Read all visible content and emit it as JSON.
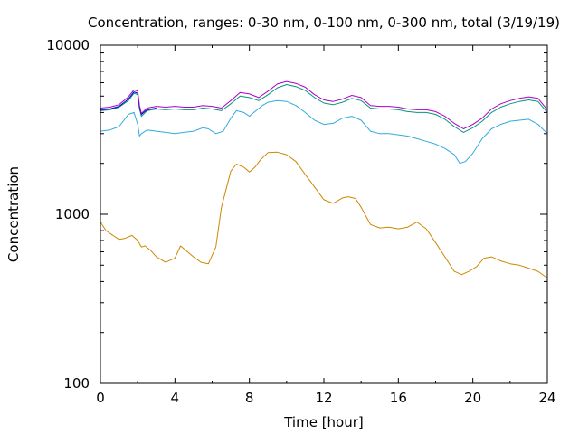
{
  "chart_data": {
    "type": "line",
    "title": "Concentration, ranges: 0-30 nm, 0-100 nm, 0-300 nm, total (3/19/19)",
    "xlabel": "Time [hour]",
    "ylabel": "Concentration",
    "xlim": [
      0,
      24
    ],
    "ylim": [
      100,
      10000
    ],
    "yscale": "log",
    "xticks": [
      0,
      4,
      8,
      12,
      16,
      20,
      24
    ],
    "yticks": [
      100,
      1000,
      10000
    ],
    "xtick_labels": [
      "0",
      "4",
      "8",
      "12",
      "16",
      "20",
      "24"
    ],
    "ytick_labels": [
      "100",
      "1000",
      "10000"
    ],
    "grid": false,
    "series": [
      {
        "color": "#cc8800",
        "x": [
          0,
          0.3,
          0.6,
          1.0,
          1.3,
          1.7,
          2.0,
          2.2,
          2.4,
          2.7,
          3.0,
          3.5,
          4.0,
          4.3,
          4.6,
          5.0,
          5.4,
          5.8,
          6.2,
          6.5,
          7.0,
          7.3,
          7.7,
          8.0,
          8.3,
          8.6,
          9.0,
          9.5,
          10.0,
          10.5,
          11.0,
          11.5,
          12.0,
          12.5,
          13.0,
          13.3,
          13.7,
          14.0,
          14.5,
          15.0,
          15.5,
          16.0,
          16.5,
          17.0,
          17.5,
          18.0,
          18.5,
          19.0,
          19.4,
          19.8,
          20.2,
          20.6,
          21.0,
          21.5,
          22.0,
          22.5,
          23.0,
          23.5,
          24.0
        ],
        "y": [
          900,
          800,
          760,
          710,
          720,
          750,
          700,
          640,
          650,
          610,
          560,
          520,
          550,
          650,
          610,
          560,
          520,
          510,
          640,
          1100,
          1800,
          1980,
          1900,
          1780,
          1900,
          2100,
          2320,
          2330,
          2250,
          2050,
          1720,
          1450,
          1220,
          1160,
          1250,
          1270,
          1240,
          1100,
          870,
          830,
          840,
          820,
          840,
          900,
          820,
          680,
          560,
          460,
          440,
          460,
          490,
          550,
          560,
          530,
          510,
          500,
          480,
          460,
          420
        ]
      },
      {
        "color": "#33aadd",
        "x": [
          0,
          0.5,
          1.0,
          1.5,
          1.8,
          2.0,
          2.1,
          2.2,
          2.5,
          3.0,
          3.5,
          4.0,
          4.5,
          5.0,
          5.5,
          5.8,
          6.2,
          6.6,
          7.0,
          7.3,
          7.7,
          8.0,
          8.3,
          8.7,
          9.0,
          9.5,
          10.0,
          10.5,
          11.0,
          11.5,
          12.0,
          12.5,
          13.0,
          13.5,
          14.0,
          14.5,
          15.0,
          15.5,
          16.0,
          16.5,
          17.0,
          17.5,
          18.0,
          18.5,
          19.0,
          19.3,
          19.6,
          20.0,
          20.5,
          21.0,
          21.5,
          22.0,
          22.5,
          23.0,
          23.5,
          24.0
        ],
        "y": [
          3100,
          3150,
          3300,
          3900,
          4000,
          3400,
          2900,
          3000,
          3150,
          3100,
          3050,
          3000,
          3050,
          3100,
          3250,
          3200,
          3000,
          3100,
          3700,
          4100,
          4000,
          3800,
          4050,
          4400,
          4600,
          4700,
          4650,
          4400,
          4000,
          3600,
          3400,
          3450,
          3700,
          3800,
          3600,
          3100,
          3000,
          3000,
          2950,
          2900,
          2800,
          2700,
          2600,
          2450,
          2250,
          2000,
          2050,
          2300,
          2800,
          3200,
          3400,
          3550,
          3600,
          3650,
          3400,
          3000
        ]
      },
      {
        "color": "#009977",
        "x": [
          0,
          0.5,
          1.0,
          1.5,
          1.8,
          2.0,
          2.1,
          2.2,
          2.5,
          3.0,
          3.5,
          4.0,
          4.5,
          5.0,
          5.5,
          6.0,
          6.5,
          7.0,
          7.5,
          8.0,
          8.5,
          9.0,
          9.5,
          10.0,
          10.5,
          11.0,
          11.5,
          12.0,
          12.5,
          13.0,
          13.5,
          14.0,
          14.5,
          15.0,
          15.5,
          16.0,
          16.5,
          17.0,
          17.5,
          18.0,
          18.5,
          19.0,
          19.5,
          20.0,
          20.5,
          21.0,
          21.5,
          22.0,
          22.5,
          23.0,
          23.5,
          24.0
        ],
        "y": [
          4100,
          4150,
          4300,
          4700,
          5200,
          5100,
          4200,
          3800,
          4100,
          4200,
          4150,
          4200,
          4150,
          4150,
          4250,
          4200,
          4100,
          4500,
          5000,
          4900,
          4700,
          5100,
          5600,
          5850,
          5700,
          5400,
          4900,
          4550,
          4450,
          4600,
          4850,
          4700,
          4250,
          4200,
          4200,
          4150,
          4050,
          4000,
          4000,
          3900,
          3650,
          3300,
          3050,
          3250,
          3550,
          4000,
          4300,
          4500,
          4650,
          4750,
          4650,
          4000
        ]
      },
      {
        "color": "#0000cc",
        "x": [
          0,
          0.5,
          1.0,
          1.5,
          1.8,
          2.0,
          2.1,
          2.2,
          2.5,
          3.0
        ],
        "y": [
          4150,
          4200,
          4350,
          4800,
          5300,
          5200,
          4300,
          3900,
          4150,
          4250
        ]
      },
      {
        "color": "#aa00cc",
        "x": [
          0,
          0.5,
          1.0,
          1.5,
          1.8,
          2.0,
          2.1,
          2.2,
          2.5,
          3.0,
          3.5,
          4.0,
          4.5,
          5.0,
          5.5,
          6.0,
          6.5,
          7.0,
          7.5,
          8.0,
          8.5,
          9.0,
          9.5,
          10.0,
          10.5,
          11.0,
          11.5,
          12.0,
          12.5,
          13.0,
          13.5,
          14.0,
          14.5,
          15.0,
          15.5,
          16.0,
          16.5,
          17.0,
          17.5,
          18.0,
          18.5,
          19.0,
          19.5,
          20.0,
          20.5,
          21.0,
          21.5,
          22.0,
          22.5,
          23.0,
          23.5,
          24.0
        ],
        "y": [
          4250,
          4300,
          4450,
          4950,
          5450,
          5350,
          4400,
          3950,
          4250,
          4350,
          4300,
          4350,
          4300,
          4300,
          4400,
          4350,
          4250,
          4700,
          5250,
          5150,
          4900,
          5350,
          5900,
          6100,
          5950,
          5650,
          5100,
          4750,
          4650,
          4800,
          5050,
          4900,
          4400,
          4350,
          4350,
          4300,
          4200,
          4150,
          4150,
          4050,
          3800,
          3450,
          3200,
          3400,
          3700,
          4200,
          4500,
          4700,
          4850,
          4950,
          4850,
          4150
        ]
      }
    ]
  }
}
